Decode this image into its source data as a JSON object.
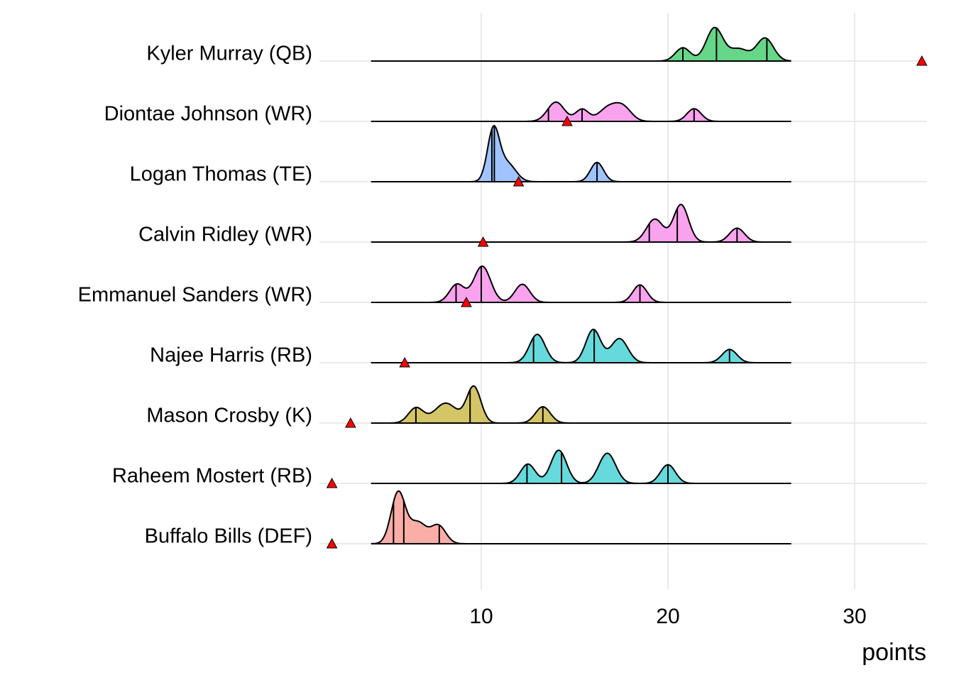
{
  "chart_data": {
    "type": "ridgeline",
    "title": "",
    "xlabel": "points",
    "ylabel": "",
    "xlim": [
      1.3,
      33.9
    ],
    "x_ticks": [
      10,
      20,
      30
    ],
    "x_tick_labels": [
      "10",
      "20",
      "30"
    ],
    "grid": true,
    "density_range": [
      4.1,
      26.6
    ],
    "series": [
      {
        "name": "Kyler Murray (QB)",
        "color": "#00BA38",
        "marker": 33.6,
        "quantiles": [
          20.8,
          22.6,
          25.3
        ],
        "peaks": [
          {
            "x": 20.8,
            "sd": 0.4,
            "d": 0.22
          },
          {
            "x": 22.5,
            "sd": 0.45,
            "d": 0.55
          },
          {
            "x": 23.8,
            "sd": 0.5,
            "d": 0.2
          },
          {
            "x": 25.2,
            "sd": 0.45,
            "d": 0.38
          }
        ]
      },
      {
        "name": "Diontae Johnson (WR)",
        "color": "#F564E3",
        "marker": 14.6,
        "quantiles": [
          13.6,
          15.4,
          21.4
        ],
        "peaks": [
          {
            "x": 14.0,
            "sd": 0.45,
            "d": 0.32
          },
          {
            "x": 15.4,
            "sd": 0.35,
            "d": 0.2
          },
          {
            "x": 16.8,
            "sd": 0.5,
            "d": 0.22
          },
          {
            "x": 17.6,
            "sd": 0.45,
            "d": 0.22
          },
          {
            "x": 21.4,
            "sd": 0.38,
            "d": 0.21
          }
        ]
      },
      {
        "name": "Logan Thomas (TE)",
        "color": "#619CFF",
        "marker": 12.0,
        "quantiles": [
          10.57,
          10.7,
          16.2
        ],
        "peaks": [
          {
            "x": 10.65,
            "sd": 0.32,
            "d": 0.85
          },
          {
            "x": 11.4,
            "sd": 0.45,
            "d": 0.3
          },
          {
            "x": 16.2,
            "sd": 0.35,
            "d": 0.32
          }
        ]
      },
      {
        "name": "Calvin Ridley (WR)",
        "color": "#F564E3",
        "marker": 10.1,
        "quantiles": [
          19.0,
          20.5,
          23.7
        ],
        "peaks": [
          {
            "x": 19.3,
            "sd": 0.45,
            "d": 0.38
          },
          {
            "x": 20.7,
            "sd": 0.4,
            "d": 0.62
          },
          {
            "x": 23.7,
            "sd": 0.4,
            "d": 0.23
          }
        ]
      },
      {
        "name": "Emmanuel Sanders (WR)",
        "color": "#F564E3",
        "marker": 9.2,
        "quantiles": [
          8.65,
          10.0,
          18.5
        ],
        "peaks": [
          {
            "x": 8.7,
            "sd": 0.4,
            "d": 0.3
          },
          {
            "x": 10.05,
            "sd": 0.45,
            "d": 0.6
          },
          {
            "x": 12.2,
            "sd": 0.4,
            "d": 0.3
          },
          {
            "x": 18.5,
            "sd": 0.38,
            "d": 0.29
          }
        ]
      },
      {
        "name": "Najee Harris (RB)",
        "color": "#00BFC4",
        "marker": 5.9,
        "quantiles": [
          12.8,
          16.05,
          23.3
        ],
        "peaks": [
          {
            "x": 13.0,
            "sd": 0.42,
            "d": 0.47
          },
          {
            "x": 16.0,
            "sd": 0.4,
            "d": 0.55
          },
          {
            "x": 17.4,
            "sd": 0.45,
            "d": 0.4
          },
          {
            "x": 23.3,
            "sd": 0.4,
            "d": 0.22
          }
        ]
      },
      {
        "name": "Mason Crosby (K)",
        "color": "#B79F00",
        "marker": 3.0,
        "quantiles": [
          6.5,
          9.4,
          13.3
        ],
        "peaks": [
          {
            "x": 6.5,
            "sd": 0.4,
            "d": 0.25
          },
          {
            "x": 8.1,
            "sd": 0.6,
            "d": 0.33
          },
          {
            "x": 9.6,
            "sd": 0.38,
            "d": 0.6
          },
          {
            "x": 13.3,
            "sd": 0.4,
            "d": 0.27
          }
        ]
      },
      {
        "name": "Raheem Mostert (RB)",
        "color": "#00BFC4",
        "marker": 2.0,
        "quantiles": [
          12.45,
          14.3,
          20.0
        ],
        "peaks": [
          {
            "x": 12.5,
            "sd": 0.4,
            "d": 0.32
          },
          {
            "x": 14.15,
            "sd": 0.42,
            "d": 0.55
          },
          {
            "x": 16.75,
            "sd": 0.45,
            "d": 0.5
          },
          {
            "x": 20.0,
            "sd": 0.4,
            "d": 0.31
          }
        ]
      },
      {
        "name": "Buffalo Bills (DEF)",
        "color": "#F8766D",
        "marker": 2.0,
        "quantiles": [
          5.3,
          5.85,
          7.75
        ],
        "peaks": [
          {
            "x": 5.55,
            "sd": 0.38,
            "d": 0.85
          },
          {
            "x": 6.6,
            "sd": 0.45,
            "d": 0.35
          },
          {
            "x": 7.7,
            "sd": 0.4,
            "d": 0.3
          }
        ]
      }
    ]
  }
}
